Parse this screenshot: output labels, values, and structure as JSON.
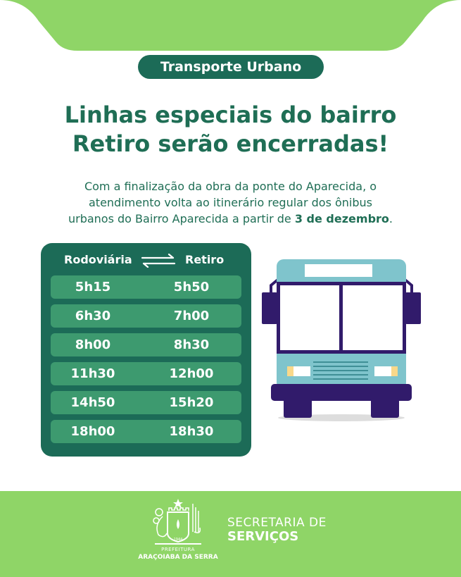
{
  "tag": "Transporte Urbano",
  "headline": [
    "Linhas especiais do bairro",
    "Retiro serão encerradas!"
  ],
  "subtext": {
    "line1": "Com a finalização da obra da ponte do Aparecida, o",
    "line2": "atendimento volta ao itinerário regular dos ônibus",
    "line3_prefix": "urbanos do Bairro Aparecida a partir de ",
    "line3_bold": "3 de dezembro",
    "line3_suffix": "."
  },
  "schedule": {
    "from": "Rodoviária",
    "to": "Retiro",
    "icon": "two-way-arrows-icon",
    "rows": [
      [
        "5h15",
        "5h50"
      ],
      [
        "6h30",
        "7h00"
      ],
      [
        "8h00",
        "8h30"
      ],
      [
        "11h30",
        "12h00"
      ],
      [
        "14h50",
        "15h20"
      ],
      [
        "18h00",
        "18h30"
      ]
    ]
  },
  "footer": {
    "logo_year": "1944",
    "prefeitura": "PREFEITURA",
    "city": "ARAÇOIABA DA SERRA",
    "secretaria_line1": "SECRETARIA DE",
    "secretaria_line2": "SERVIÇOS"
  },
  "colors": {
    "light_green": "#8fd567",
    "dark_green": "#1c6b57",
    "row_green": "#3d9a6f",
    "bus_body": "#7fc4cc",
    "bus_dark": "#311b6b"
  }
}
